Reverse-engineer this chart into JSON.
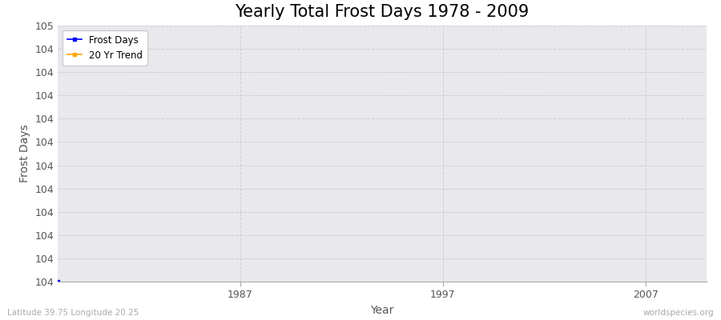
{
  "title": "Yearly Total Frost Days 1978 - 2009",
  "xlabel": "Year",
  "ylabel": "Frost Days",
  "fig_bg_color": "#ffffff",
  "plot_bg_color": "#e8e8ed",
  "frost_days_color": "#0000ff",
  "trend_color": "#ffa500",
  "legend_labels": [
    "Frost Days",
    "20 Yr Trend"
  ],
  "x_data": [
    1978
  ],
  "y_data": [
    104.0
  ],
  "xlim": [
    1978,
    2010
  ],
  "ylim": [
    104.0,
    105.1
  ],
  "xticks": [
    1987,
    1997,
    2007
  ],
  "ytick_step": 0.1,
  "grid_color": "#cccccc",
  "grid_style": "--",
  "grid_alpha": 0.9,
  "title_fontsize": 15,
  "axis_label_fontsize": 10,
  "tick_fontsize": 9,
  "footnote_left": "Latitude 39.75 Longitude 20.25",
  "footnote_right": "worldspecies.org"
}
